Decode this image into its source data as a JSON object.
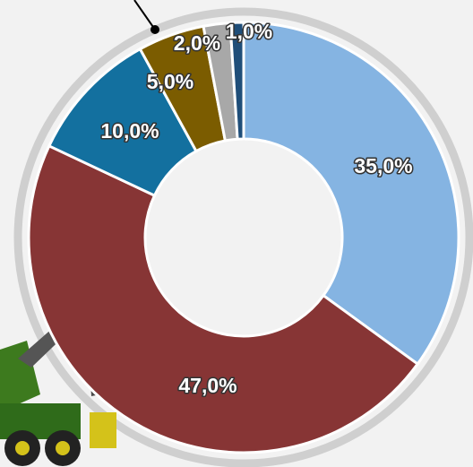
{
  "chart_data": {
    "type": "donut",
    "categories": [
      null,
      null,
      null,
      null,
      null,
      null
    ],
    "values": [
      35,
      47,
      10,
      5,
      2,
      1
    ],
    "value_labels": [
      "35,0%",
      "47,0%",
      "10,0%",
      "5,0%",
      "2,0%",
      "1,0%"
    ],
    "colors": [
      "#85b4e2",
      "#873535",
      "#13709f",
      "#7b5c00",
      "#a8a8a8",
      "#1f4e79"
    ]
  }
}
